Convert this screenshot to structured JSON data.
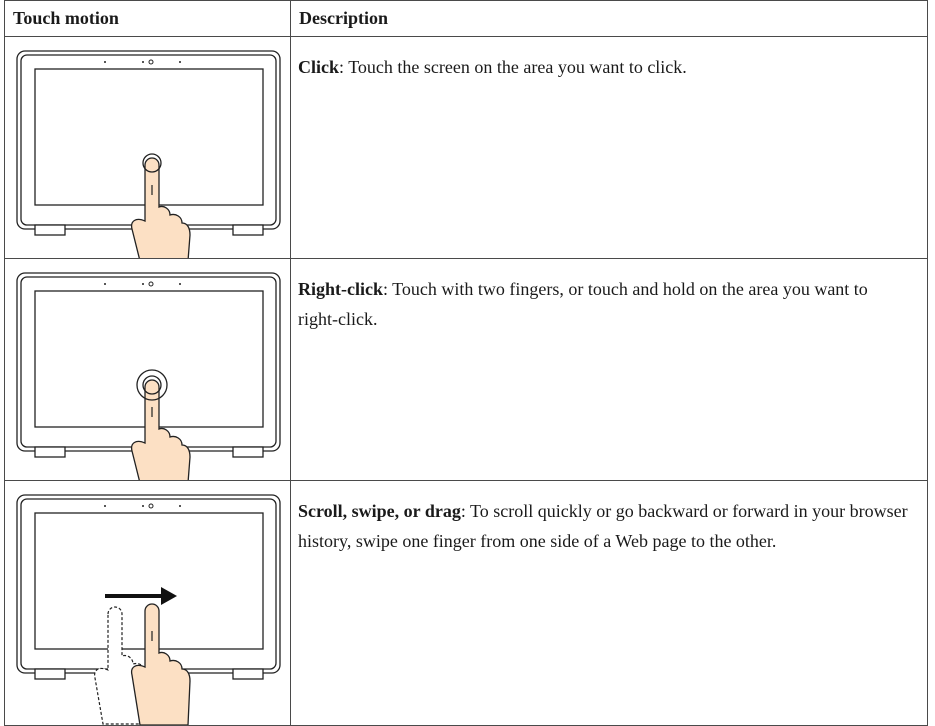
{
  "table": {
    "header": [
      "Touch motion",
      "Description"
    ],
    "rows": [
      {
        "term": "Click",
        "text": ": Touch the screen on the area you want to click."
      },
      {
        "term": "Right-click",
        "text": ": Touch with two fingers, or touch and hold on the area you want to right-click."
      },
      {
        "term": "Scroll, swipe, or drag",
        "text": ": To scroll quickly or go backward or forward in your browser history, swipe one finger from one side of a Web page to the other."
      }
    ]
  }
}
